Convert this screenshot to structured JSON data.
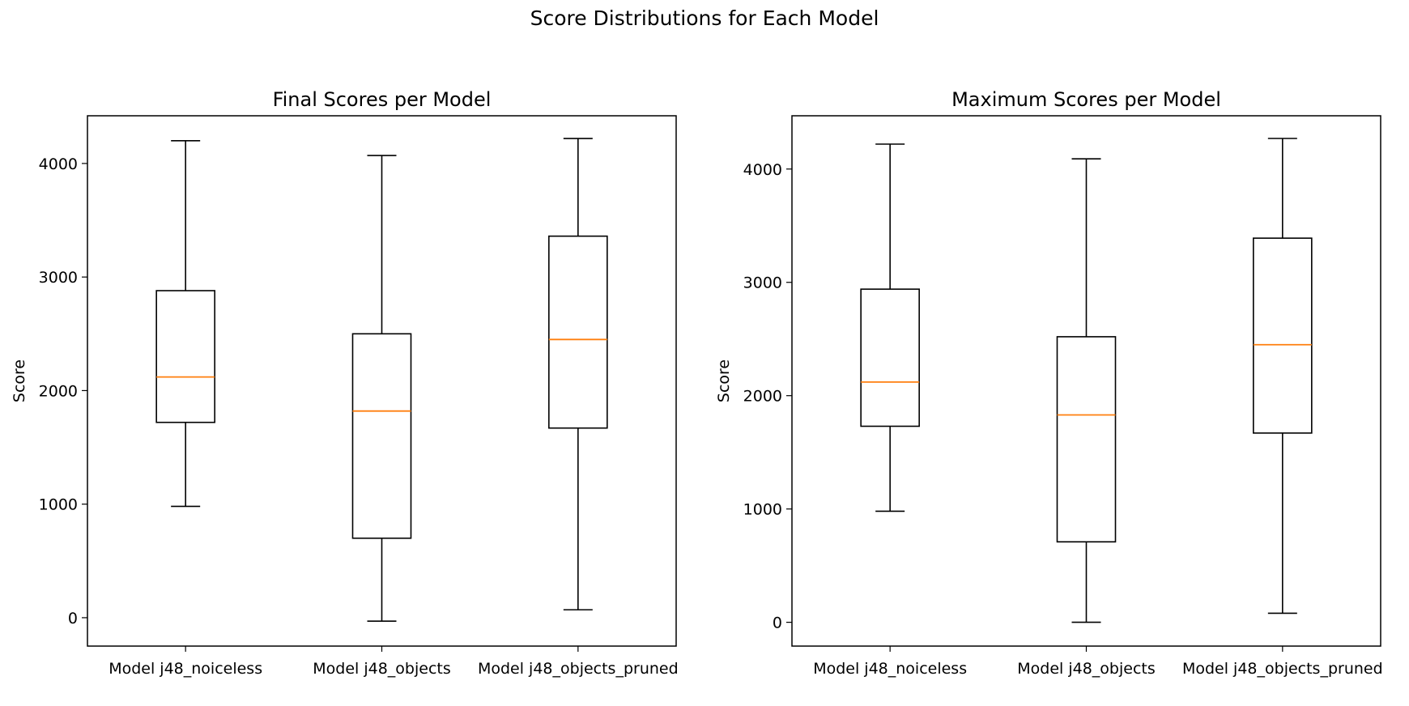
{
  "figure": {
    "suptitle": "Score Distributions for Each Model"
  },
  "colors": {
    "box": "#000000",
    "median": "#ff7f0e"
  },
  "chart_data": [
    {
      "type": "box",
      "title": "Final Scores per Model",
      "xlabel": "",
      "ylabel": "Score",
      "categories": [
        "Model j48_noiceless",
        "Model j48_objects",
        "Model j48_objects_pruned"
      ],
      "yticks": [
        0,
        1000,
        2000,
        3000,
        4000
      ],
      "ylim": [
        -250,
        4420
      ],
      "boxes": [
        {
          "whisker_low": 980,
          "q1": 1720,
          "median": 2120,
          "q3": 2880,
          "whisker_high": 4200
        },
        {
          "whisker_low": -30,
          "q1": 700,
          "median": 1820,
          "q3": 2500,
          "whisker_high": 4070
        },
        {
          "whisker_low": 70,
          "q1": 1670,
          "median": 2450,
          "q3": 3360,
          "whisker_high": 4220
        }
      ]
    },
    {
      "type": "box",
      "title": "Maximum Scores per Model",
      "xlabel": "",
      "ylabel": "Score",
      "categories": [
        "Model j48_noiceless",
        "Model j48_objects",
        "Model j48_objects_pruned"
      ],
      "yticks": [
        0,
        1000,
        2000,
        3000,
        4000
      ],
      "ylim": [
        -210,
        4470
      ],
      "boxes": [
        {
          "whisker_low": 980,
          "q1": 1730,
          "median": 2120,
          "q3": 2940,
          "whisker_high": 4220
        },
        {
          "whisker_low": 0,
          "q1": 710,
          "median": 1830,
          "q3": 2520,
          "whisker_high": 4090
        },
        {
          "whisker_low": 80,
          "q1": 1670,
          "median": 2450,
          "q3": 3390,
          "whisker_high": 4270
        }
      ]
    }
  ]
}
